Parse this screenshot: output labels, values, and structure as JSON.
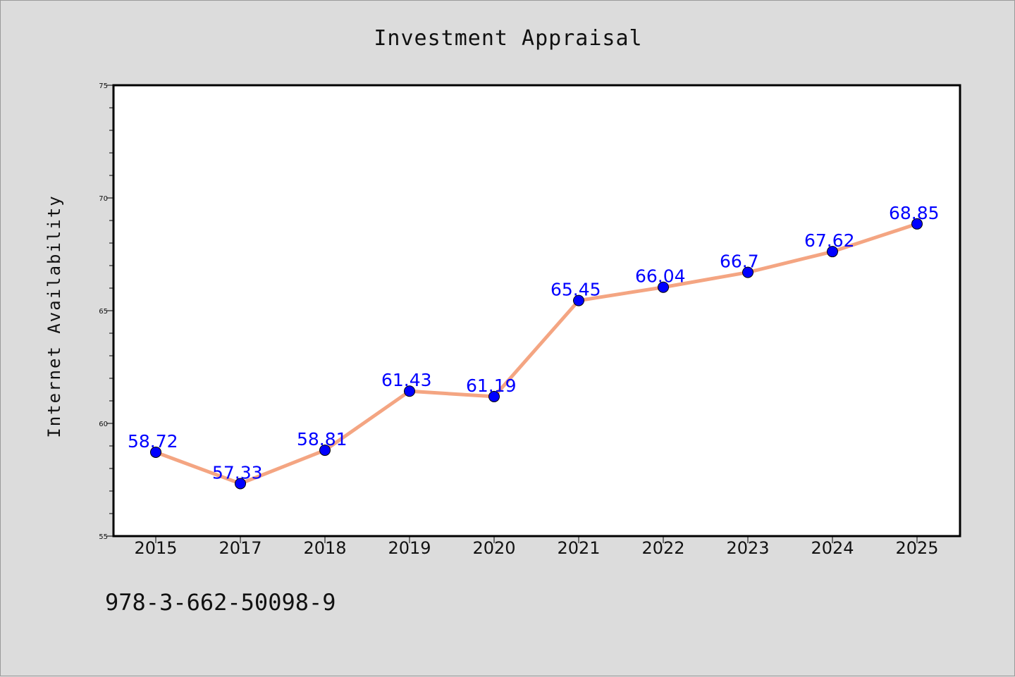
{
  "chart_data": {
    "type": "line",
    "title": "Investment Appraisal",
    "xlabel": "",
    "ylabel": "Internet Availability",
    "categories": [
      "2015",
      "2017",
      "2018",
      "2019",
      "2020",
      "2021",
      "2022",
      "2023",
      "2024",
      "2025"
    ],
    "series": [
      {
        "values": [
          58.72,
          57.33,
          58.81,
          61.43,
          61.19,
          65.45,
          66.04,
          66.7,
          67.62,
          68.85
        ],
        "data_labels": [
          "58.72",
          "57.33",
          "58.81",
          "61.43",
          "61.19",
          "65.45",
          "66.04",
          "66.7",
          "67.62",
          "68.85"
        ]
      }
    ],
    "ylim": [
      55,
      75
    ],
    "yticks": [
      "55",
      "60",
      "65",
      "70",
      "75"
    ],
    "grid": false,
    "legend": "none",
    "colors": {
      "line": "#f4a582",
      "marker": "#0000ff",
      "label": "#0000ff"
    }
  },
  "footer": {
    "identifier": "978-3-662-50098-9"
  }
}
